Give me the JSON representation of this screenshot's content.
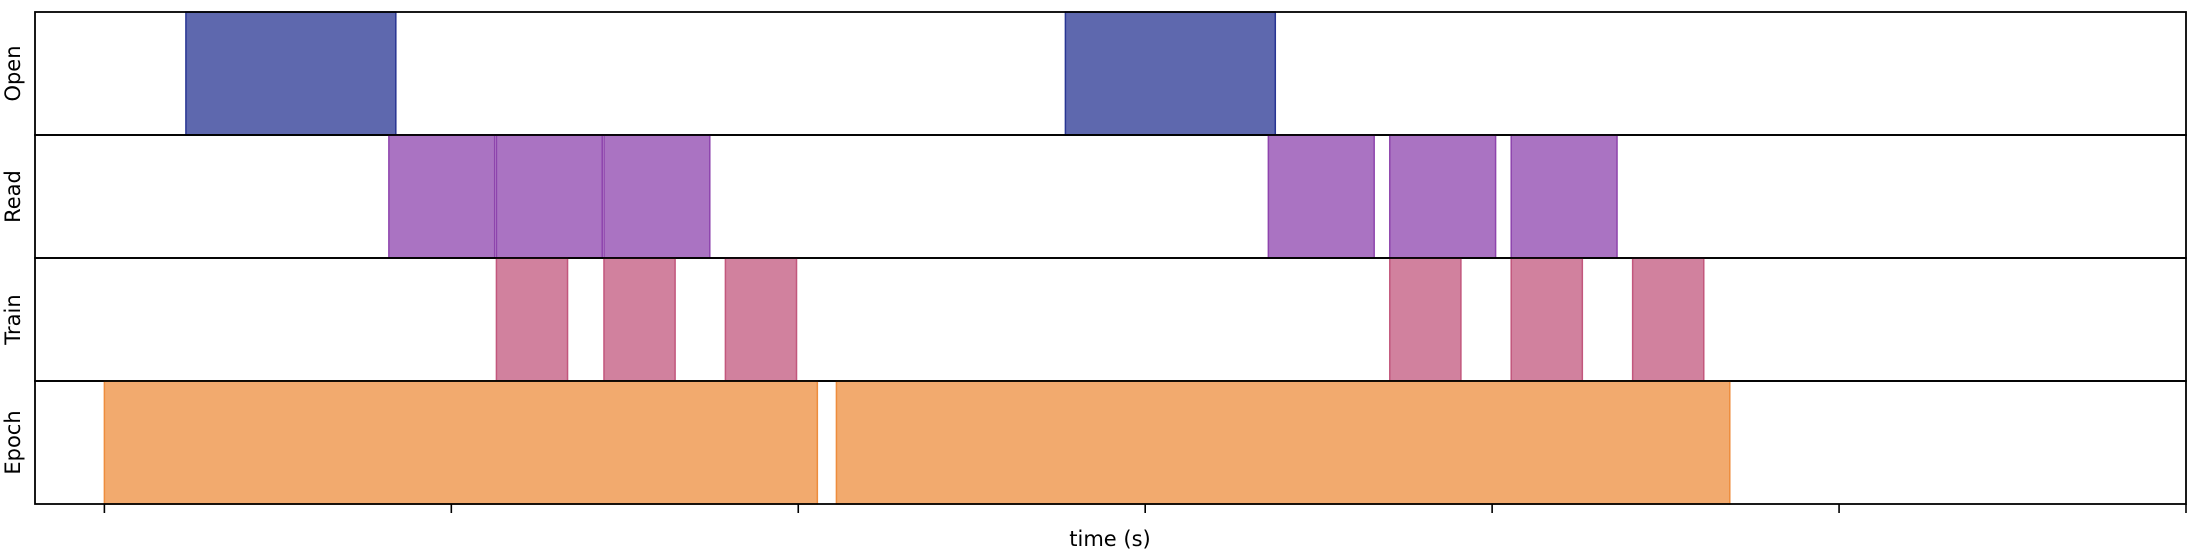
{
  "chart_data": {
    "type": "timeline",
    "xlabel": "time (s)",
    "ylabel": "",
    "title": "",
    "grid": false,
    "legend": "none",
    "xlim": [
      -0.2,
      6.0
    ],
    "x_ticks": [
      0,
      1,
      2,
      3,
      4,
      5,
      6
    ],
    "x_tick_labels": [],
    "rows": [
      {
        "label": "Open",
        "color": "#283593",
        "intervals": [
          [
            0.235,
            0.84
          ],
          [
            2.77,
            3.375
          ]
        ]
      },
      {
        "label": "Read",
        "color": "#8e44ad",
        "intervals": [
          [
            0.82,
            1.125
          ],
          [
            1.13,
            1.435
          ],
          [
            1.44,
            1.745
          ],
          [
            3.355,
            3.66
          ],
          [
            3.705,
            4.01
          ],
          [
            4.055,
            4.36
          ]
        ]
      },
      {
        "label": "Train",
        "color": "#c2577d",
        "intervals": [
          [
            1.13,
            1.335
          ],
          [
            1.44,
            1.645
          ],
          [
            1.79,
            1.995
          ],
          [
            3.705,
            3.91
          ],
          [
            4.055,
            4.26
          ],
          [
            4.405,
            4.61
          ]
        ]
      },
      {
        "label": "Epoch",
        "color": "#ee8d3d",
        "intervals": [
          [
            0.0,
            2.055
          ],
          [
            2.11,
            4.685
          ]
        ]
      }
    ]
  }
}
